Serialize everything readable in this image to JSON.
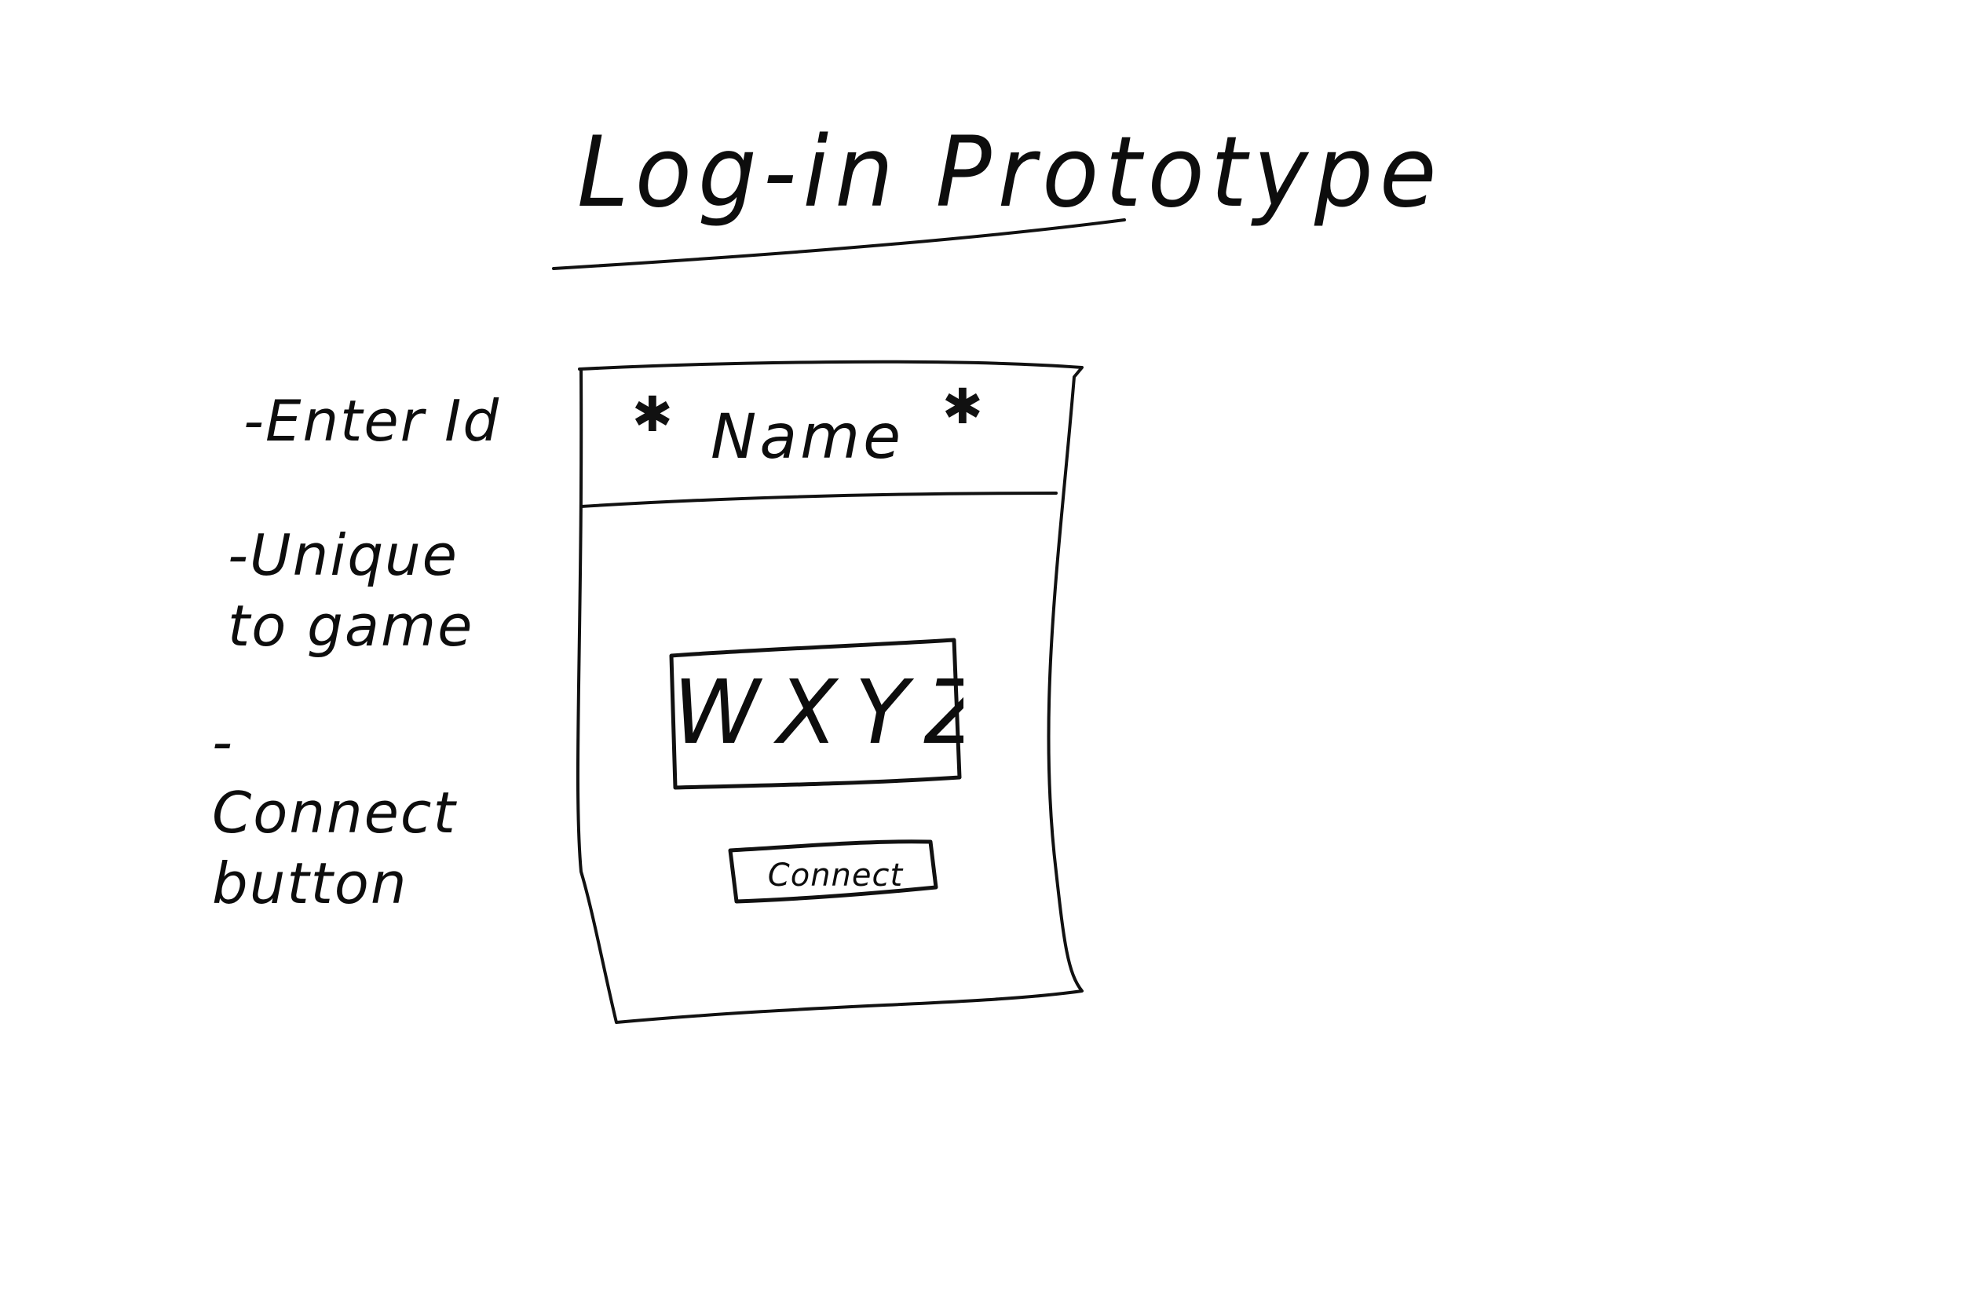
{
  "page": {
    "title": "Log-in Prototype"
  },
  "annotations": {
    "enter_id": "-Enter Id",
    "unique_to_game": "-Unique to game",
    "connect_button": "-Connect button"
  },
  "login_screen": {
    "header_label": "Name",
    "id_field_value": "WXYZ",
    "connect_label": "Connect",
    "decorations": [
      "star-icon",
      "star-icon"
    ]
  }
}
